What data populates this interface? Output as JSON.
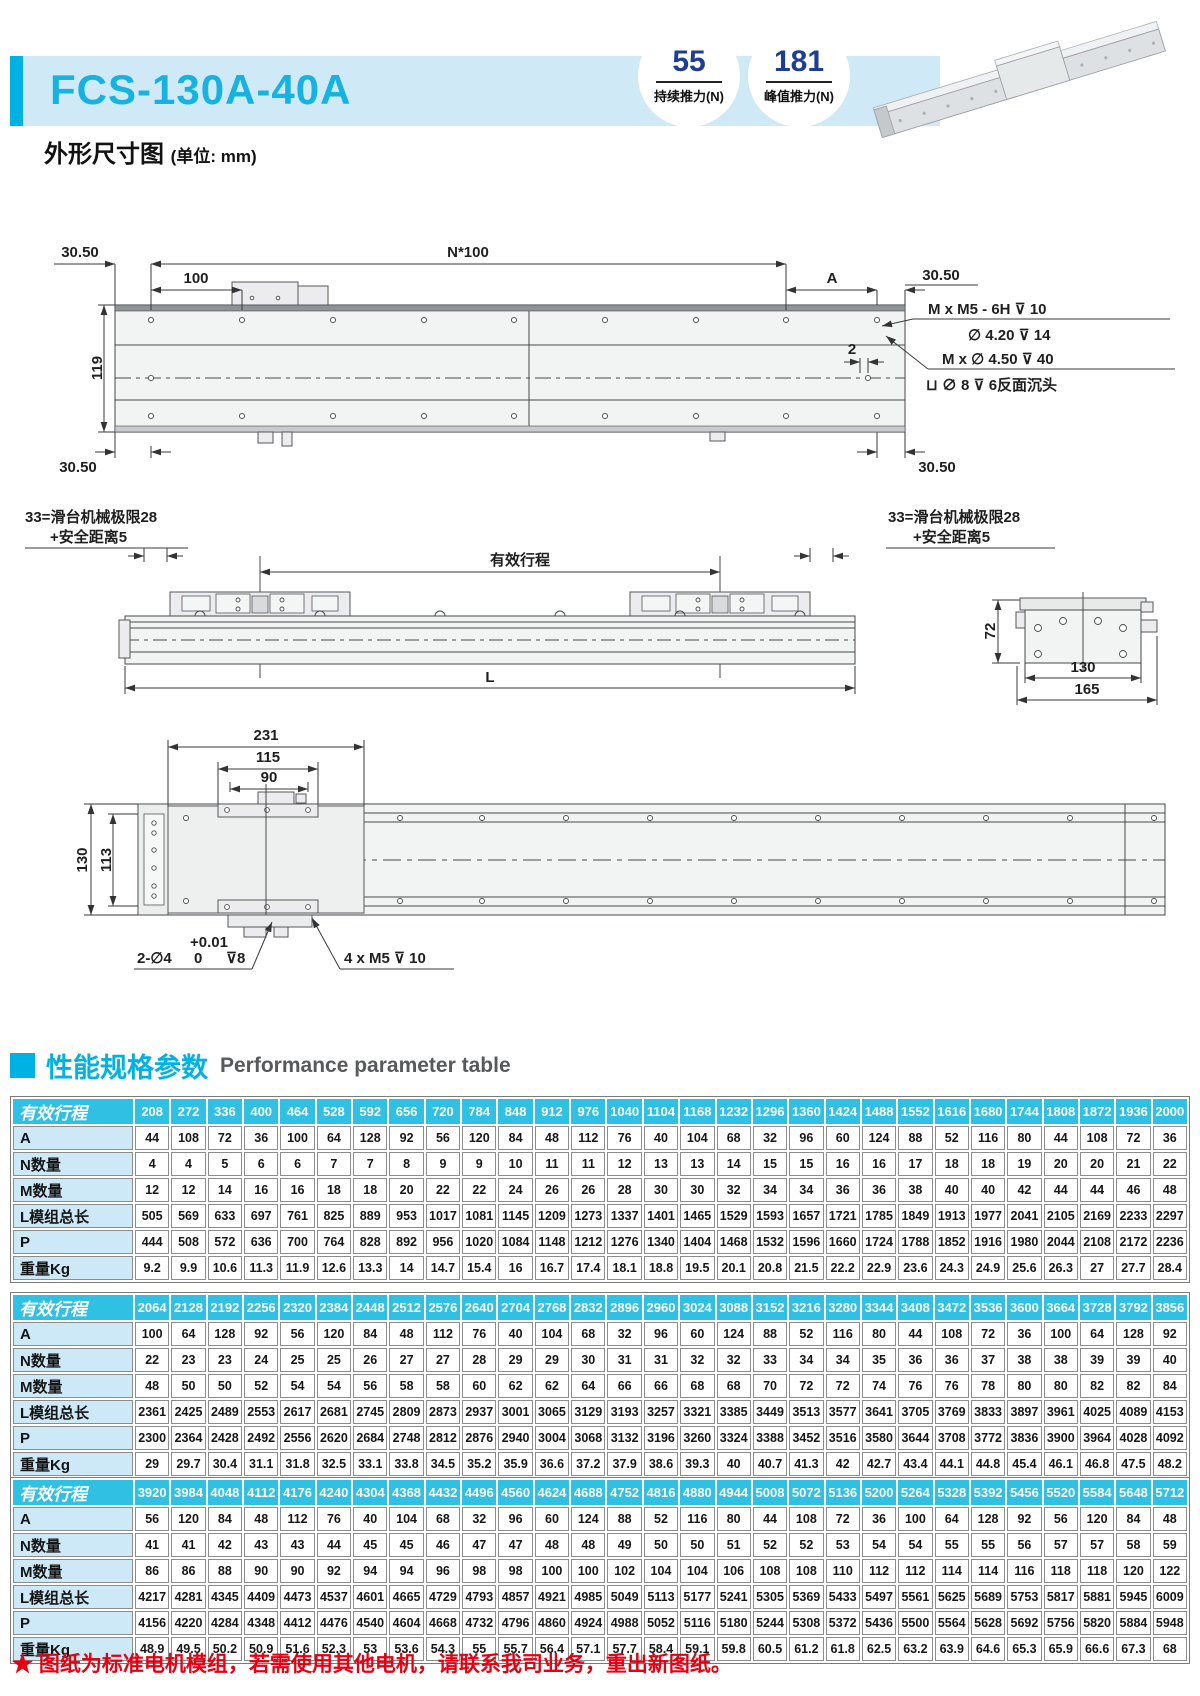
{
  "colors": {
    "accent_cyan": "#00b2e3",
    "title_cyan": "#16b2e2",
    "band_blue": "#cfe9f6",
    "table_header_cyan": "#2fc0e4",
    "table_label_blue": "#cde9f7",
    "badge_navy": "#1d3e94",
    "note_red": "#e60012"
  },
  "header": {
    "model": "FCS-130A-40A",
    "badges": [
      {
        "value": "55",
        "label": "持续推力(N)"
      },
      {
        "value": "181",
        "label": "峰值推力(N)"
      }
    ],
    "subtitle": "外形尺寸图",
    "subtitle_unit": "(单位: mm)"
  },
  "drawings": {
    "view1": {
      "dim_3050_tl": "30.50",
      "dim_n100": "N*100",
      "dim_100": "100",
      "dim_a": "A",
      "dim_3050_tr": "30.50",
      "dim_119": "119",
      "dim_3050_bl": "30.50",
      "dim_3050_br": "30.50",
      "dim_2": "2",
      "note_thread": "M x  M5 - 6H  ⊽ 10",
      "note_thread2": "∅ 4.20  ⊽ 14",
      "note_hole": "M x ∅ 4.50  ⊽ 40",
      "note_hole2": "⊔ ∅ 8 ⊽ 6反面沉头"
    },
    "view2": {
      "limit_line1": "33=滑台机械极限28",
      "limit_line2": "+安全距离5",
      "stroke_label": "有效行程",
      "dim_l": "L",
      "dim_72": "72",
      "dim_130": "130",
      "dim_165": "165"
    },
    "view3": {
      "dim_231": "231",
      "dim_115": "115",
      "dim_90": "90",
      "dim_130": "130",
      "dim_113": "113",
      "note_pin": "2-∅4",
      "note_pin_tol_up": "+0.01",
      "note_pin_tol_dn": "0",
      "note_pin_depth": "⊽8",
      "note_m5": "4 x  M5  ⊽ 10"
    }
  },
  "section": {
    "title_zh": "性能规格参数",
    "title_en": "Performance parameter table"
  },
  "tables": [
    {
      "stroke_label": "有效行程",
      "strokes": [
        208,
        272,
        336,
        400,
        464,
        528,
        592,
        656,
        720,
        784,
        848,
        912,
        976,
        1040,
        1104,
        1168,
        1232,
        1296,
        1360,
        1424,
        1488,
        1552,
        1616,
        1680,
        1744,
        1808,
        1872,
        1936,
        2000
      ],
      "rows": [
        {
          "label": "A",
          "values": [
            44,
            108,
            72,
            36,
            100,
            64,
            128,
            92,
            56,
            120,
            84,
            48,
            112,
            76,
            40,
            104,
            68,
            32,
            96,
            60,
            124,
            88,
            52,
            116,
            80,
            44,
            108,
            72,
            36
          ]
        },
        {
          "label": "N数量",
          "values": [
            4,
            4,
            5,
            6,
            6,
            7,
            7,
            8,
            9,
            9,
            10,
            11,
            11,
            12,
            13,
            13,
            14,
            15,
            15,
            16,
            16,
            17,
            18,
            18,
            19,
            20,
            20,
            21,
            22
          ]
        },
        {
          "label": "M数量",
          "values": [
            12,
            12,
            14,
            16,
            16,
            18,
            18,
            20,
            22,
            22,
            24,
            26,
            26,
            28,
            30,
            30,
            32,
            34,
            34,
            36,
            36,
            38,
            40,
            40,
            42,
            44,
            44,
            46,
            48
          ]
        },
        {
          "label": "L模组总长",
          "values": [
            505,
            569,
            633,
            697,
            761,
            825,
            889,
            953,
            1017,
            1081,
            1145,
            1209,
            1273,
            1337,
            1401,
            1465,
            1529,
            1593,
            1657,
            1721,
            1785,
            1849,
            1913,
            1977,
            2041,
            2105,
            2169,
            2233,
            2297
          ]
        },
        {
          "label": "P",
          "values": [
            444,
            508,
            572,
            636,
            700,
            764,
            828,
            892,
            956,
            1020,
            1084,
            1148,
            1212,
            1276,
            1340,
            1404,
            1468,
            1532,
            1596,
            1660,
            1724,
            1788,
            1852,
            1916,
            1980,
            2044,
            2108,
            2172,
            2236
          ]
        },
        {
          "label": "重量Kg",
          "values": [
            9.2,
            9.9,
            10.6,
            11.3,
            11.9,
            12.6,
            13.3,
            14,
            14.7,
            15.4,
            16,
            16.7,
            17.4,
            18.1,
            18.8,
            19.5,
            20.1,
            20.8,
            21.5,
            22.2,
            22.9,
            23.6,
            24.3,
            24.9,
            25.6,
            26.3,
            27,
            27.7,
            28.4
          ]
        }
      ]
    },
    {
      "stroke_label": "有效行程",
      "strokes": [
        2064,
        2128,
        2192,
        2256,
        2320,
        2384,
        2448,
        2512,
        2576,
        2640,
        2704,
        2768,
        2832,
        2896,
        2960,
        3024,
        3088,
        3152,
        3216,
        3280,
        3344,
        3408,
        3472,
        3536,
        3600,
        3664,
        3728,
        3792,
        3856
      ],
      "rows": [
        {
          "label": "A",
          "values": [
            100,
            64,
            128,
            92,
            56,
            120,
            84,
            48,
            112,
            76,
            40,
            104,
            68,
            32,
            96,
            60,
            124,
            88,
            52,
            116,
            80,
            44,
            108,
            72,
            36,
            100,
            64,
            128,
            92
          ]
        },
        {
          "label": "N数量",
          "values": [
            22,
            23,
            23,
            24,
            25,
            25,
            26,
            27,
            27,
            28,
            29,
            29,
            30,
            31,
            31,
            32,
            32,
            33,
            34,
            34,
            35,
            36,
            36,
            37,
            38,
            38,
            39,
            39,
            40
          ]
        },
        {
          "label": "M数量",
          "values": [
            48,
            50,
            50,
            52,
            54,
            54,
            56,
            58,
            58,
            60,
            62,
            62,
            64,
            66,
            66,
            68,
            68,
            70,
            72,
            72,
            74,
            76,
            76,
            78,
            80,
            80,
            82,
            82,
            84
          ]
        },
        {
          "label": "L模组总长",
          "values": [
            2361,
            2425,
            2489,
            2553,
            2617,
            2681,
            2745,
            2809,
            2873,
            2937,
            3001,
            3065,
            3129,
            3193,
            3257,
            3321,
            3385,
            3449,
            3513,
            3577,
            3641,
            3705,
            3769,
            3833,
            3897,
            3961,
            4025,
            4089,
            4153
          ]
        },
        {
          "label": "P",
          "values": [
            2300,
            2364,
            2428,
            2492,
            2556,
            2620,
            2684,
            2748,
            2812,
            2876,
            2940,
            3004,
            3068,
            3132,
            3196,
            3260,
            3324,
            3388,
            3452,
            3516,
            3580,
            3644,
            3708,
            3772,
            3836,
            3900,
            3964,
            4028,
            4092
          ]
        },
        {
          "label": "重量Kg",
          "values": [
            29,
            29.7,
            30.4,
            31.1,
            31.8,
            32.5,
            33.1,
            33.8,
            34.5,
            35.2,
            35.9,
            36.6,
            37.2,
            37.9,
            38.6,
            39.3,
            40,
            40.7,
            41.3,
            42,
            42.7,
            43.4,
            44.1,
            44.8,
            45.4,
            46.1,
            46.8,
            47.5,
            48.2
          ]
        }
      ]
    },
    {
      "stroke_label": "有效行程",
      "strokes": [
        3920,
        3984,
        4048,
        4112,
        4176,
        4240,
        4304,
        4368,
        4432,
        4496,
        4560,
        4624,
        4688,
        4752,
        4816,
        4880,
        4944,
        5008,
        5072,
        5136,
        5200,
        5264,
        5328,
        5392,
        5456,
        5520,
        5584,
        5648,
        5712
      ],
      "rows": [
        {
          "label": "A",
          "values": [
            56,
            120,
            84,
            48,
            112,
            76,
            40,
            104,
            68,
            32,
            96,
            60,
            124,
            88,
            52,
            116,
            80,
            44,
            108,
            72,
            36,
            100,
            64,
            128,
            92,
            56,
            120,
            84,
            48
          ]
        },
        {
          "label": "N数量",
          "values": [
            41,
            41,
            42,
            43,
            43,
            44,
            45,
            45,
            46,
            47,
            47,
            48,
            48,
            49,
            50,
            50,
            51,
            52,
            52,
            53,
            54,
            54,
            55,
            55,
            56,
            57,
            57,
            58,
            59
          ]
        },
        {
          "label": "M数量",
          "values": [
            86,
            86,
            88,
            90,
            90,
            92,
            94,
            94,
            96,
            98,
            98,
            100,
            100,
            102,
            104,
            104,
            106,
            108,
            108,
            110,
            112,
            112,
            114,
            114,
            116,
            118,
            118,
            120,
            122
          ]
        },
        {
          "label": "L模组总长",
          "values": [
            4217,
            4281,
            4345,
            4409,
            4473,
            4537,
            4601,
            4665,
            4729,
            4793,
            4857,
            4921,
            4985,
            5049,
            5113,
            5177,
            5241,
            5305,
            5369,
            5433,
            5497,
            5561,
            5625,
            5689,
            5753,
            5817,
            5881,
            5945,
            6009
          ]
        },
        {
          "label": "P",
          "values": [
            4156,
            4220,
            4284,
            4348,
            4412,
            4476,
            4540,
            4604,
            4668,
            4732,
            4796,
            4860,
            4924,
            4988,
            5052,
            5116,
            5180,
            5244,
            5308,
            5372,
            5436,
            5500,
            5564,
            5628,
            5692,
            5756,
            5820,
            5884,
            5948
          ]
        },
        {
          "label": "重量Kg",
          "values": [
            48.9,
            49.5,
            50.2,
            50.9,
            51.6,
            52.3,
            53,
            53.6,
            54.3,
            55,
            55.7,
            56.4,
            57.1,
            57.7,
            58.4,
            59.1,
            59.8,
            60.5,
            61.2,
            61.8,
            62.5,
            63.2,
            63.9,
            64.6,
            65.3,
            65.9,
            66.6,
            67.3,
            68
          ]
        }
      ]
    }
  ],
  "footer": {
    "note": "★ 图纸为标准电机模组，若需使用其他电机，请联系我司业务，重出新图纸。"
  }
}
